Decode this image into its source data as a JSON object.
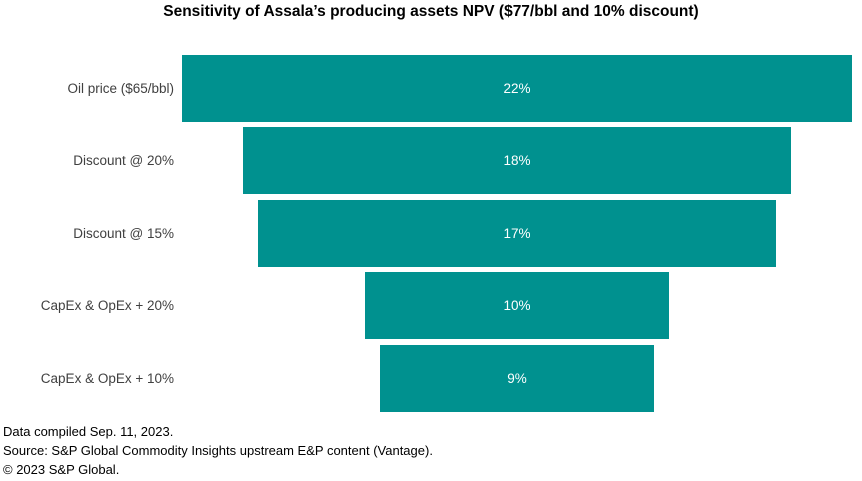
{
  "title": "Sensitivity of Assala’s producing assets NPV ($77/bbl and 10% discount)",
  "colors": {
    "bar": "#00918f",
    "bar_value_text": "#ffffff",
    "category_label_text": "#404040"
  },
  "chart_data": {
    "type": "bar",
    "orientation": "horizontal-centered",
    "title": "Sensitivity of Assala’s producing assets NPV ($77/bbl and 10% discount)",
    "categories": [
      "Oil price ($65/bbl)",
      "Discount @ 20%",
      "Discount @ 15%",
      "CapEx & OpEx + 20%",
      "CapEx & OpEx + 10%"
    ],
    "values": [
      22,
      18,
      17,
      10,
      9
    ],
    "value_labels": [
      "22%",
      "18%",
      "17%",
      "10%",
      "9%"
    ],
    "xlabel": "",
    "ylabel": "",
    "xmax": 22,
    "grid": false,
    "legend": false
  },
  "footer": {
    "line1": "Data compiled Sep. 11, 2023.",
    "line2": "Source: S&P Global Commodity Insights upstream E&P content (Vantage).",
    "line3": "© 2023 S&P Global."
  }
}
